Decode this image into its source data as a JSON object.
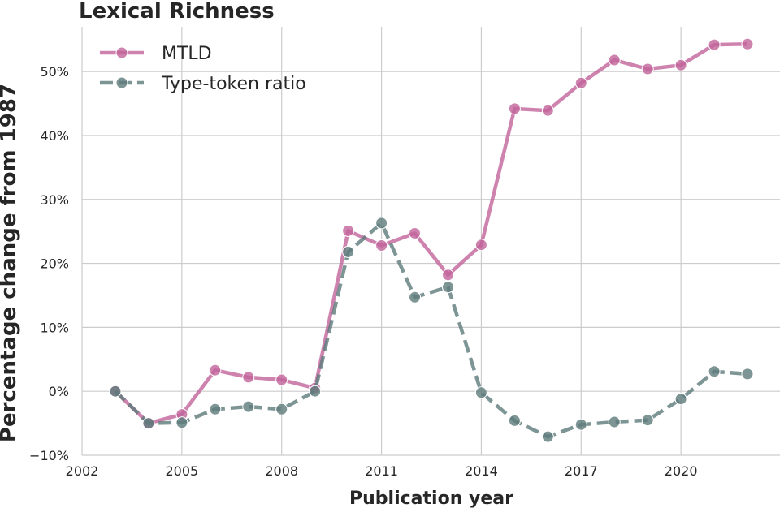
{
  "chart_data": {
    "type": "line",
    "title": "Lexical Richness",
    "xlabel": "Publication year",
    "ylabel": "Percentage change from 1987",
    "xlim": [
      2002,
      2023
    ],
    "ylim": [
      -10,
      57
    ],
    "xticks": [
      2002,
      2005,
      2008,
      2011,
      2014,
      2017,
      2020
    ],
    "xtick_labels": [
      "2002",
      "2005",
      "2008",
      "2011",
      "2014",
      "2017",
      "2020"
    ],
    "yticks": [
      -10,
      0,
      10,
      20,
      30,
      40,
      50
    ],
    "ytick_labels": [
      "−10%",
      "0%",
      "10%",
      "20%",
      "30%",
      "40%",
      "50%"
    ],
    "grid": true,
    "legend_position": "top-left",
    "x": [
      2003,
      2004,
      2005,
      2006,
      2007,
      2008,
      2009,
      2010,
      2011,
      2012,
      2013,
      2014,
      2015,
      2016,
      2017,
      2018,
      2019,
      2020,
      2021,
      2022
    ],
    "series": [
      {
        "name": "MTLD",
        "color": "#c2649b",
        "line_style": "solid",
        "values": [
          0.0,
          -5.0,
          -3.6,
          3.3,
          2.2,
          1.8,
          0.5,
          25.1,
          22.8,
          24.7,
          18.2,
          22.9,
          44.2,
          43.9,
          48.2,
          51.8,
          50.4,
          51.0,
          54.2,
          54.3
        ]
      },
      {
        "name": "Type-token ratio",
        "color": "#5e7b7a",
        "line_style": "dashed",
        "values": [
          0.0,
          -5.0,
          -4.9,
          -2.8,
          -2.4,
          -2.8,
          0.0,
          21.8,
          26.3,
          14.7,
          16.3,
          -0.2,
          -4.6,
          -7.1,
          -5.2,
          -4.8,
          -4.5,
          -1.2,
          3.1,
          2.7
        ]
      }
    ]
  }
}
